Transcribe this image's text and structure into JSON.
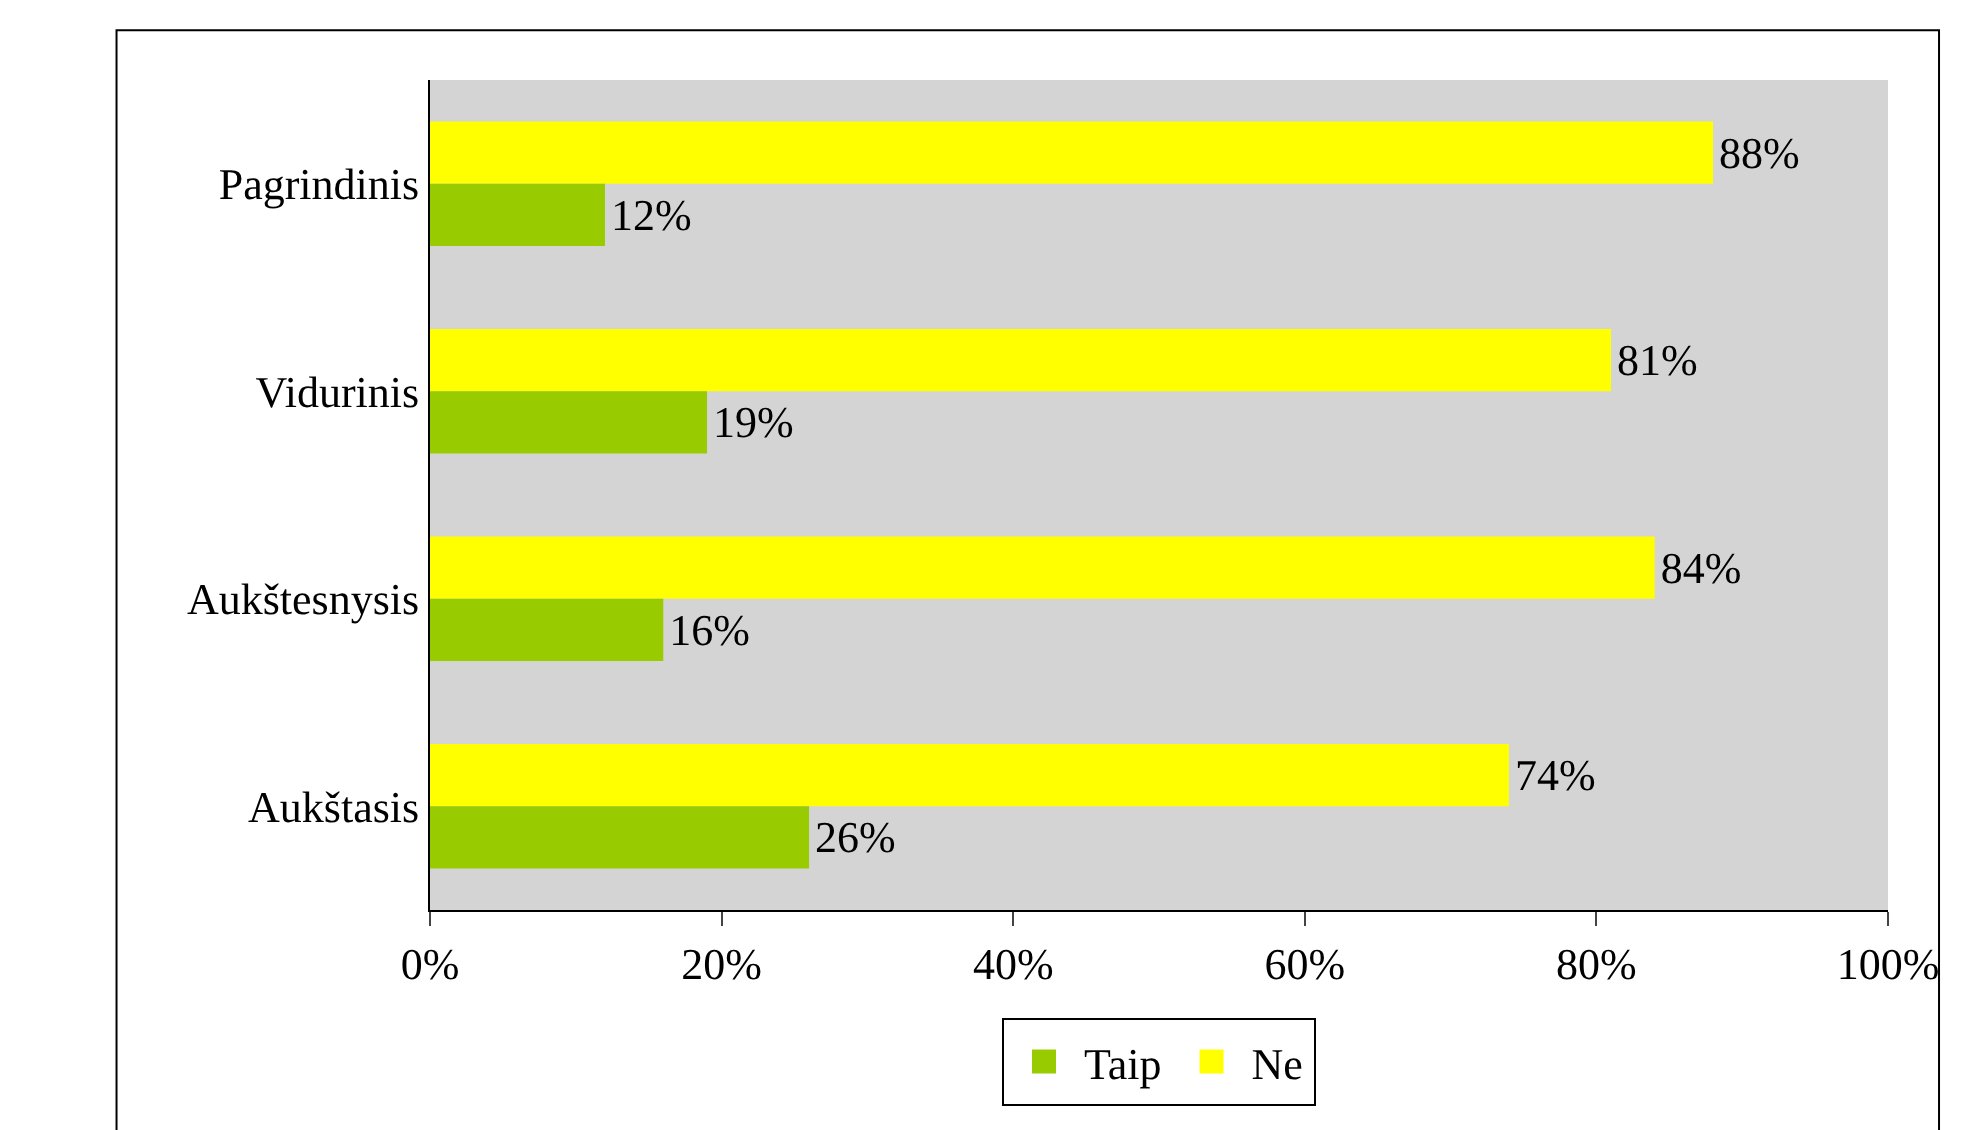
{
  "chart_data": {
    "type": "bar",
    "orientation": "horizontal",
    "categories": [
      "Pagrindinis",
      "Vidurinis",
      "Aukštesnysis",
      "Aukštasis"
    ],
    "series": [
      {
        "name": "Taip",
        "color": "#99cc00",
        "values": [
          12,
          19,
          16,
          26
        ],
        "value_labels": [
          "12%",
          "19%",
          "16%",
          "26%"
        ]
      },
      {
        "name": "Ne",
        "color": "#ffff00",
        "values": [
          88,
          81,
          84,
          74
        ],
        "value_labels": [
          "88%",
          "81%",
          "84%",
          "74%"
        ]
      }
    ],
    "xlim": [
      0,
      100
    ],
    "xticks": [
      {
        "value": 0,
        "label": "0%"
      },
      {
        "value": 20,
        "label": "20%"
      },
      {
        "value": 40,
        "label": "40%"
      },
      {
        "value": 60,
        "label": "60%"
      },
      {
        "value": 80,
        "label": "80%"
      },
      {
        "value": 100,
        "label": "100%"
      }
    ],
    "grid": false,
    "legend": "bottom"
  }
}
